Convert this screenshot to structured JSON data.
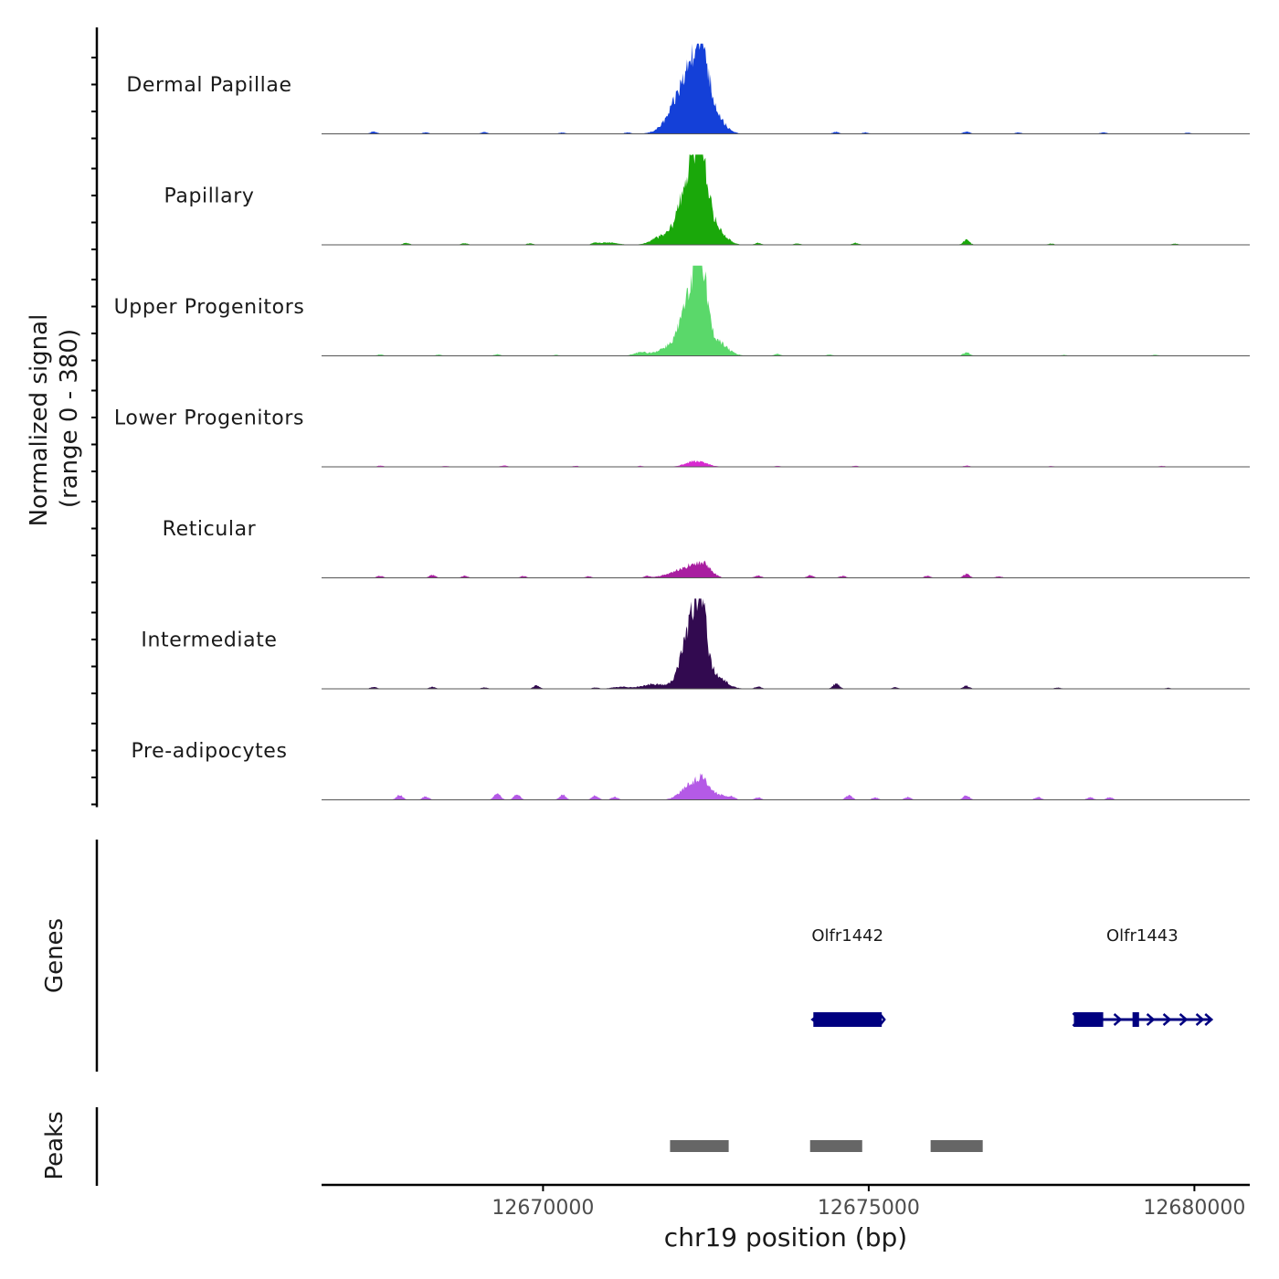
{
  "colors": {
    "dermal_papillae": "#1440d8",
    "papillary": "#1aa80a",
    "upper_progenitors": "#5ad86a",
    "lower_progenitors": "#d82ad0",
    "reticular": "#a81ea0",
    "intermediate": "#320a50",
    "pre_adipocytes": "#b45ae6",
    "gene": "#000080",
    "peak": "#666666",
    "axis": "#000000"
  },
  "chart_data": {
    "type": "area",
    "title": "",
    "ylabel_line1": "Normalized signal",
    "ylabel_line2": "(range 0 - 380)",
    "ylim": [
      0,
      380
    ],
    "xlabel": "chr19 position (bp)",
    "xlim": [
      12666600,
      12680850
    ],
    "x_ticks": [
      12670000,
      12675000,
      12680000
    ],
    "x_tick_labels": [
      "12670000",
      "12675000",
      "12680000"
    ],
    "tracks": [
      {
        "name": "Dermal Papillae",
        "color_key": "dermal_papillae",
        "peaks": [
          [
            12672280,
            260,
            300
          ],
          [
            12672420,
            200,
            130
          ],
          [
            12672600,
            60,
            220
          ],
          [
            12671950,
            20,
            250
          ]
        ],
        "bumps": [
          [
            12667400,
            10
          ],
          [
            12668200,
            6
          ],
          [
            12669100,
            7
          ],
          [
            12670300,
            6
          ],
          [
            12671300,
            6
          ],
          [
            12674500,
            8
          ],
          [
            12674950,
            6
          ],
          [
            12676500,
            10
          ],
          [
            12677300,
            6
          ],
          [
            12678600,
            6
          ],
          [
            12679900,
            5
          ]
        ]
      },
      {
        "name": "Papillary",
        "color_key": "papillary",
        "peaks": [
          [
            12672270,
            300,
            240
          ],
          [
            12672420,
            260,
            120
          ],
          [
            12672620,
            70,
            220
          ],
          [
            12671800,
            30,
            200
          ],
          [
            12671000,
            10,
            200
          ]
        ],
        "bumps": [
          [
            12667900,
            8
          ],
          [
            12668800,
            7
          ],
          [
            12669800,
            6
          ],
          [
            12670800,
            6
          ],
          [
            12673300,
            8
          ],
          [
            12673900,
            6
          ],
          [
            12674800,
            8
          ],
          [
            12676500,
            20
          ],
          [
            12677800,
            5
          ],
          [
            12679700,
            5
          ]
        ]
      },
      {
        "name": "Upper Progenitors",
        "color_key": "upper_progenitors",
        "peaks": [
          [
            12672280,
            250,
            220
          ],
          [
            12672430,
            280,
            110
          ],
          [
            12672650,
            60,
            230
          ],
          [
            12671900,
            30,
            220
          ],
          [
            12671500,
            14,
            150
          ]
        ],
        "bumps": [
          [
            12667500,
            6
          ],
          [
            12668400,
            5
          ],
          [
            12669300,
            6
          ],
          [
            12670200,
            4
          ],
          [
            12673600,
            8
          ],
          [
            12674400,
            5
          ],
          [
            12676500,
            14
          ],
          [
            12678000,
            4
          ],
          [
            12679400,
            4
          ]
        ]
      },
      {
        "name": "Lower Progenitors",
        "color_key": "lower_progenitors",
        "peaks": [
          [
            12672350,
            24,
            220
          ]
        ],
        "bumps": [
          [
            12667500,
            5
          ],
          [
            12668500,
            4
          ],
          [
            12669400,
            6
          ],
          [
            12670500,
            4
          ],
          [
            12671500,
            4
          ],
          [
            12673600,
            4
          ],
          [
            12674800,
            4
          ],
          [
            12676500,
            5
          ],
          [
            12677800,
            3
          ],
          [
            12679500,
            4
          ]
        ]
      },
      {
        "name": "Reticular",
        "color_key": "reticular",
        "peaks": [
          [
            12672280,
            50,
            240
          ],
          [
            12672500,
            36,
            140
          ],
          [
            12671950,
            14,
            200
          ]
        ],
        "bumps": [
          [
            12667500,
            8
          ],
          [
            12668300,
            12
          ],
          [
            12668800,
            8
          ],
          [
            12669700,
            7
          ],
          [
            12670700,
            6
          ],
          [
            12671600,
            8
          ],
          [
            12673300,
            10
          ],
          [
            12674100,
            10
          ],
          [
            12674600,
            8
          ],
          [
            12675900,
            8
          ],
          [
            12676500,
            16
          ],
          [
            12677000,
            6
          ]
        ]
      },
      {
        "name": "Intermediate",
        "color_key": "intermediate",
        "peaks": [
          [
            12672270,
            260,
            200
          ],
          [
            12672430,
            240,
            120
          ],
          [
            12672650,
            50,
            220
          ],
          [
            12671700,
            20,
            250
          ],
          [
            12671200,
            8,
            200
          ]
        ],
        "bumps": [
          [
            12667400,
            8
          ],
          [
            12668300,
            8
          ],
          [
            12669100,
            6
          ],
          [
            12669900,
            14
          ],
          [
            12670800,
            6
          ],
          [
            12673300,
            10
          ],
          [
            12674500,
            22
          ],
          [
            12675400,
            6
          ],
          [
            12676500,
            12
          ],
          [
            12677900,
            5
          ],
          [
            12679600,
            4
          ]
        ]
      },
      {
        "name": "Pre-adipocytes",
        "color_key": "pre_adipocytes",
        "peaks": [
          [
            12672250,
            60,
            200
          ],
          [
            12672450,
            68,
            140
          ],
          [
            12672700,
            22,
            150
          ]
        ],
        "bumps": [
          [
            12667800,
            20
          ],
          [
            12668200,
            14
          ],
          [
            12669300,
            28
          ],
          [
            12669600,
            22
          ],
          [
            12670300,
            20
          ],
          [
            12670800,
            18
          ],
          [
            12671100,
            12
          ],
          [
            12672900,
            12
          ],
          [
            12673300,
            10
          ],
          [
            12674700,
            20
          ],
          [
            12675100,
            10
          ],
          [
            12675600,
            12
          ],
          [
            12676500,
            18
          ],
          [
            12677600,
            12
          ],
          [
            12678400,
            10
          ],
          [
            12678700,
            10
          ]
        ]
      }
    ],
    "genes_label": "Genes",
    "genes": [
      {
        "name": "Olfr1442",
        "start": 12674150,
        "end": 12675200,
        "strand": "-",
        "exons": [
          [
            12674150,
            12675200
          ]
        ]
      },
      {
        "name": "Olfr1443",
        "start": 12678150,
        "end": 12680250,
        "strand": "+",
        "exons": [
          [
            12678150,
            12678600
          ],
          [
            12679050,
            12679150
          ]
        ]
      }
    ],
    "peaks_label": "Peaks",
    "peak_regions": [
      [
        12671950,
        12672850
      ],
      [
        12674100,
        12674900
      ],
      [
        12675950,
        12676750
      ]
    ]
  }
}
